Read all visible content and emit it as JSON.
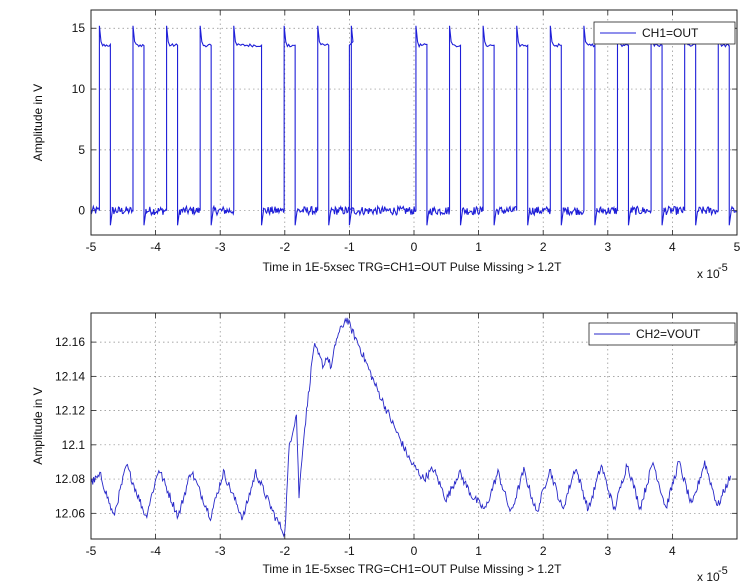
{
  "chart_data": [
    {
      "type": "line",
      "title": "",
      "xlabel": "Time in 1E-5xsec TRG=CH1=OUT Pulse Missing > 1.2T",
      "ylabel": "Amplitude in V",
      "x_multiplier": "x 10",
      "x_multiplier_exp": "-5",
      "xlim": [
        -5,
        5
      ],
      "ylim": [
        -2,
        16.5
      ],
      "xticks": [
        -5,
        -4,
        -3,
        -2,
        -1,
        0,
        1,
        2,
        3,
        4,
        5
      ],
      "yticks": [
        0,
        5,
        10,
        15
      ],
      "tick_labels_x": [
        "-5",
        "-4",
        "-3",
        "-2",
        "-1",
        "0",
        "1",
        "2",
        "3",
        "4",
        "5"
      ],
      "tick_labels_y": [
        "0",
        "5",
        "10",
        "15"
      ],
      "grid": true,
      "legend_position": "top-right",
      "series": [
        {
          "name": "CH1=OUT",
          "color": "#1f1fd8",
          "signal": "square pulse train",
          "low_level": 0,
          "high_level": 13.6,
          "spike_peak": 15.2,
          "rising_edges": [
            -4.87,
            -4.35,
            -3.83,
            -3.31,
            -2.79,
            -2.01,
            -1.49,
            -0.97,
            0.03,
            0.55,
            1.07,
            1.59,
            2.11,
            2.63,
            3.15,
            3.67,
            4.19,
            4.71
          ],
          "falling_edges": [
            -4.7,
            -4.18,
            -3.66,
            -3.14,
            -2.36,
            -1.84,
            -1.32,
            -1.0,
            0.2,
            0.72,
            1.24,
            1.76,
            2.28,
            2.8,
            3.32,
            3.84,
            4.36,
            4.88
          ]
        }
      ]
    },
    {
      "type": "line",
      "title": "",
      "xlabel": "Time in 1E-5xsec TRG=CH1=OUT Pulse Missing > 1.2T",
      "ylabel": "Amplitude in V",
      "x_multiplier": "x 10",
      "x_multiplier_exp": "-5",
      "xlim": [
        -5,
        5
      ],
      "ylim": [
        12.045,
        12.177
      ],
      "xticks": [
        -5,
        -4,
        -3,
        -2,
        -1,
        0,
        1,
        2,
        3,
        4
      ],
      "yticks": [
        12.06,
        12.08,
        12.1,
        12.12,
        12.14,
        12.16
      ],
      "tick_labels_x": [
        "-5",
        "-4",
        "-3",
        "-2",
        "-1",
        "0",
        "1",
        "2",
        "3",
        "4"
      ],
      "tick_labels_y": [
        "12.06",
        "12.08",
        "12.1",
        "12.12",
        "12.14",
        "12.16"
      ],
      "grid": true,
      "legend_position": "top-right",
      "series": [
        {
          "name": "CH2=VOUT",
          "color": "#2727c8",
          "x": [
            -5,
            -4.85,
            -4.65,
            -4.45,
            -4.15,
            -3.95,
            -3.65,
            -3.45,
            -3.15,
            -2.95,
            -2.65,
            -2.45,
            -2.15,
            -2.0,
            -1.93,
            -1.82,
            -1.78,
            -1.72,
            -1.55,
            -1.4,
            -1.35,
            -1.28,
            -1.2,
            -1.05,
            -0.85,
            -0.6,
            -0.3,
            -0.05,
            0.15,
            0.3,
            0.5,
            0.7,
            0.9,
            1.1,
            1.3,
            1.5,
            1.7,
            1.9,
            2.1,
            2.3,
            2.5,
            2.7,
            2.9,
            3.1,
            3.3,
            3.5,
            3.7,
            3.9,
            4.1,
            4.3,
            4.5,
            4.7,
            4.9
          ],
          "y": [
            12.078,
            12.082,
            12.058,
            12.088,
            12.058,
            12.086,
            12.058,
            12.085,
            12.058,
            12.084,
            12.057,
            12.084,
            12.058,
            12.048,
            12.1,
            12.118,
            12.07,
            12.1,
            12.158,
            12.146,
            12.152,
            12.145,
            12.162,
            12.174,
            12.158,
            12.135,
            12.11,
            12.09,
            12.08,
            12.086,
            12.068,
            12.084,
            12.07,
            12.062,
            12.084,
            12.06,
            12.085,
            12.06,
            12.086,
            12.062,
            12.087,
            12.062,
            12.088,
            12.062,
            12.089,
            12.063,
            12.09,
            12.063,
            12.09,
            12.064,
            12.09,
            12.064,
            12.082
          ]
        }
      ]
    }
  ]
}
